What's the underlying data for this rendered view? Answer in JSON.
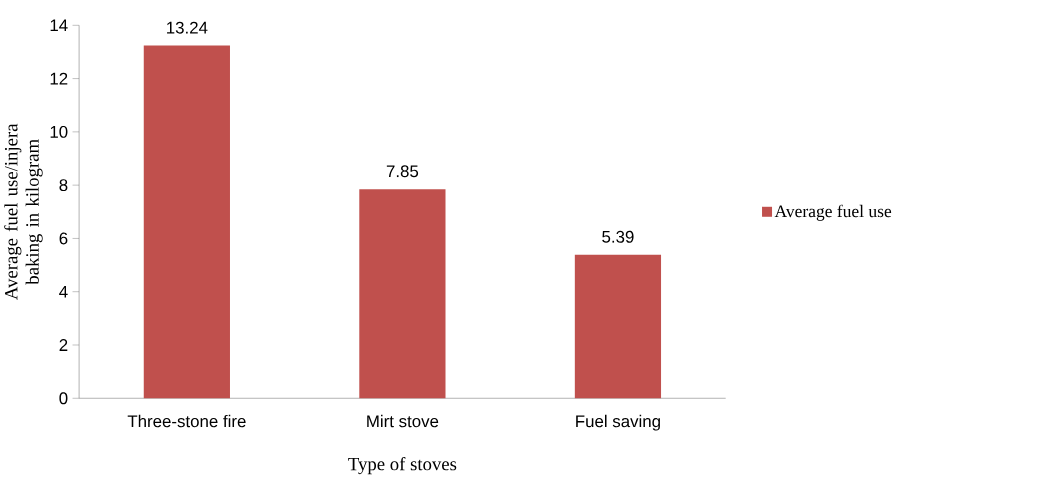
{
  "chart_data": {
    "type": "bar",
    "xlabel": "Type of stoves",
    "ylabel": "Average fuel use/injera baking in kilogram",
    "categories": [
      "Three-stone fire",
      "Mirt stove",
      "Fuel saving"
    ],
    "series": [
      {
        "name": "Average fuel use",
        "color": "#c0504d",
        "values": [
          13.24,
          7.85,
          5.39
        ]
      }
    ],
    "ylim": [
      0,
      14
    ],
    "yticks": [
      0,
      2,
      4,
      6,
      8,
      10,
      12,
      14
    ],
    "data_labels": true,
    "legend": "right",
    "grid": false
  }
}
